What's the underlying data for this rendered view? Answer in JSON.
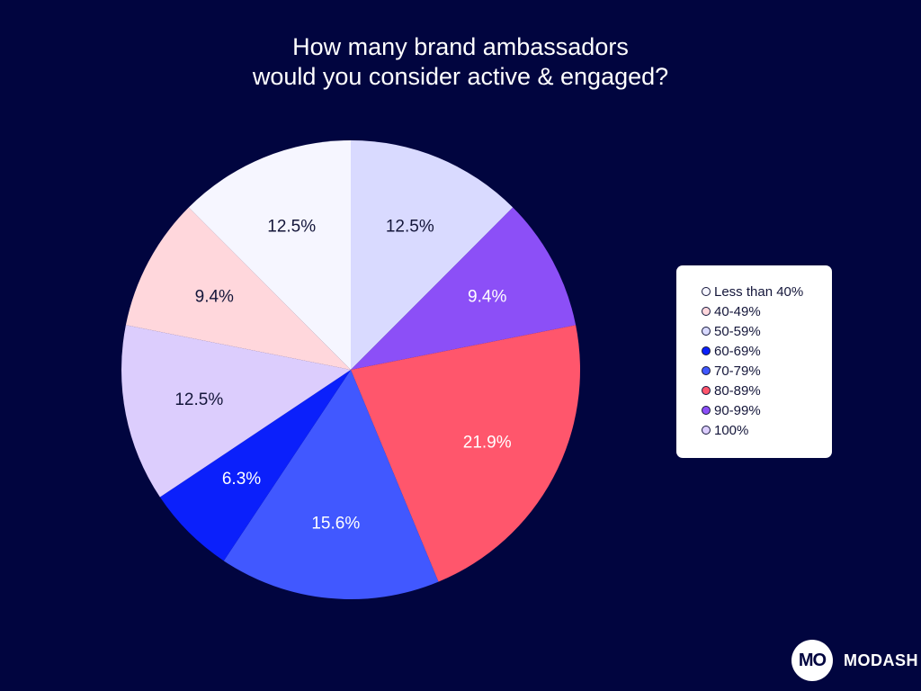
{
  "chart_data": {
    "type": "pie",
    "title": [
      "How many brand ambassadors",
      "would you consider active & engaged?"
    ],
    "legend_position": "right",
    "start": "top, clockwise",
    "slices": [
      {
        "label": "50-59%",
        "value": 12.5,
        "display": "12.5%",
        "color": "#d9daff",
        "text_color": "#14163a"
      },
      {
        "label": "90-99%",
        "value": 9.4,
        "display": "9.4%",
        "color": "#8c4ff7",
        "text_color": "#ffffff"
      },
      {
        "label": "80-89%",
        "value": 21.9,
        "display": "21.9%",
        "color": "#ff566c",
        "text_color": "#ffffff"
      },
      {
        "label": "70-79%",
        "value": 15.6,
        "display": "15.6%",
        "color": "#4158ff",
        "text_color": "#ffffff"
      },
      {
        "label": "60-69%",
        "value": 6.3,
        "display": "6.3%",
        "color": "#0b20fb",
        "text_color": "#ffffff"
      },
      {
        "label": "100%",
        "value": 12.5,
        "display": "12.5%",
        "color": "#dccdfd",
        "text_color": "#14163a"
      },
      {
        "label": "40-49%",
        "value": 9.4,
        "display": "9.4%",
        "color": "#ffd7dc",
        "text_color": "#14163a"
      },
      {
        "label": "Less than 40%",
        "value": 12.5,
        "display": "12.5%",
        "color": "#f6f6ff",
        "text_color": "#14163a"
      }
    ],
    "legend": [
      {
        "label": "Less than 40%",
        "color": "#f6f6ff"
      },
      {
        "label": "40-49%",
        "color": "#ffd7dc"
      },
      {
        "label": "50-59%",
        "color": "#d9daff"
      },
      {
        "label": "60-69%",
        "color": "#0b20fb"
      },
      {
        "label": "70-79%",
        "color": "#4158ff"
      },
      {
        "label": "80-89%",
        "color": "#ff566c"
      },
      {
        "label": "90-99%",
        "color": "#8c4ff7"
      },
      {
        "label": "100%",
        "color": "#dccdfd"
      }
    ]
  },
  "brand": {
    "logo_text": "MO",
    "name": "MODASH"
  },
  "colors": {
    "background": "#01053f"
  }
}
